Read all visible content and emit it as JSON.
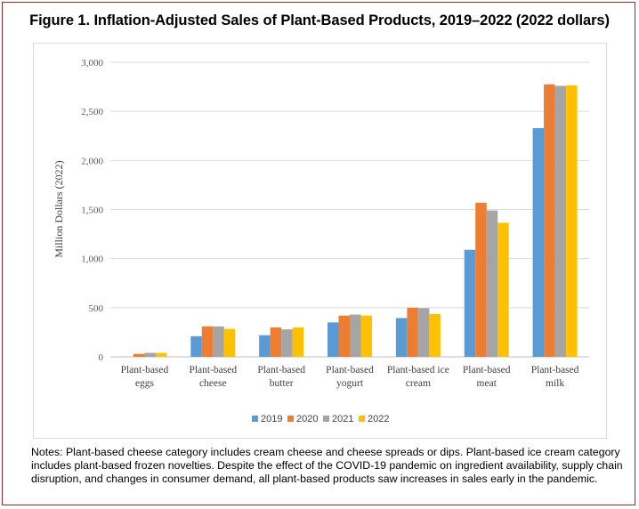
{
  "title": "Figure 1. Inflation-Adjusted Sales of Plant-Based Products, 2019–2022 (2022 dollars)",
  "notes": "Notes: Plant-based cheese category includes cream cheese and cheese spreads or dips. Plant-based ice cream category includes plant-based frozen novelties. Despite the effect of the COVID-19 pandemic on ingredient availability, supply chain disruption, and changes in consumer demand, all plant-based products saw increases in sales early in the pandemic.",
  "chart_data": {
    "type": "bar",
    "title": "Figure 1. Inflation-Adjusted Sales of Plant-Based Products, 2019–2022 (2022 dollars)",
    "xlabel": "",
    "ylabel": "Million Dollars (2022)",
    "ylim": [
      0,
      3000
    ],
    "yticks": [
      "0",
      "500",
      "1,000",
      "1,500",
      "2,000",
      "2,500",
      "3,000"
    ],
    "ytick_values": [
      0,
      500,
      1000,
      1500,
      2000,
      2500,
      3000
    ],
    "grid": true,
    "legend_position": "bottom",
    "categories": [
      [
        "Plant-based",
        "eggs"
      ],
      [
        "Plant-based",
        "cheese"
      ],
      [
        "Plant-based",
        "butter"
      ],
      [
        "Plant-based",
        "yogurt"
      ],
      [
        "Plant-based ice",
        "cream"
      ],
      [
        "Plant-based",
        "meat"
      ],
      [
        "Plant-based",
        "milk"
      ]
    ],
    "series": [
      {
        "name": "2019",
        "color": "#5b9bd5",
        "values": [
          0,
          210,
          220,
          350,
          395,
          1090,
          2330
        ]
      },
      {
        "name": "2020",
        "color": "#ed7d31",
        "values": [
          30,
          310,
          300,
          420,
          500,
          1570,
          2775
        ]
      },
      {
        "name": "2021",
        "color": "#a5a5a5",
        "values": [
          40,
          310,
          280,
          430,
          495,
          1490,
          2760
        ]
      },
      {
        "name": "2022",
        "color": "#ffc000",
        "values": [
          40,
          285,
          300,
          420,
          435,
          1365,
          2765
        ]
      }
    ]
  }
}
